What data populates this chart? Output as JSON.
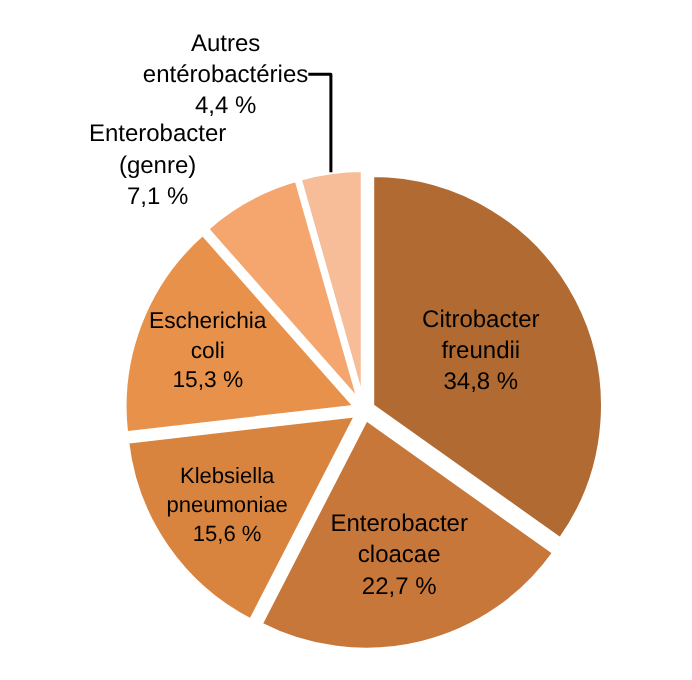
{
  "chart_data": {
    "type": "pie",
    "categories": [
      "Citrobacter\nfreundii",
      "Enterobacter\ncloacae",
      "Klebsiella\npneumoniae",
      "Escherichia\ncoli",
      "Enterobacter\n(genre)",
      "Autres\nentérobactéries"
    ],
    "values": [
      34.8,
      22.7,
      15.6,
      15.3,
      7.1,
      4.4
    ],
    "value_labels": [
      "34,8 %",
      "22,7 %",
      "15,6 %",
      "15,3 %",
      "7,1 %",
      "4,4 %"
    ],
    "colors": [
      "#b06a32",
      "#c8773b",
      "#d8843f",
      "#e8914a",
      "#f4a66e",
      "#f6bd98"
    ],
    "legend": false
  }
}
